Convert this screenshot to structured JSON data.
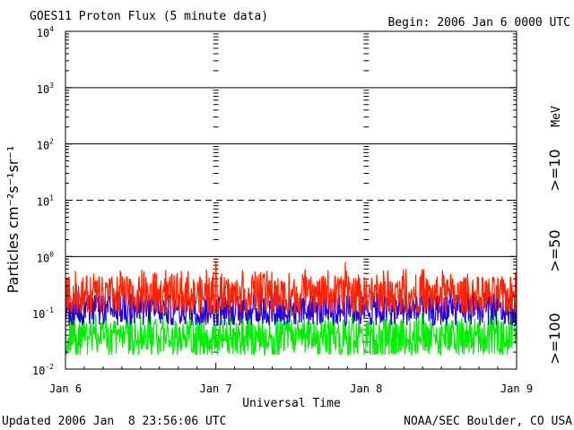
{
  "chart_data": {
    "type": "line",
    "title": "GOES11 Proton Flux (5 minute data)",
    "begin_label": "Begin: 2006 Jan 6 0000 UTC",
    "xlabel": "Universal Time",
    "ylabel": "Particles cm⁻²s⁻¹sr⁻¹",
    "unit_label": "MeV",
    "yscale": "log",
    "ylim": [
      0.01,
      10000
    ],
    "ytick_labels": [
      {
        "base": "10",
        "exp": "-2",
        "value": 0.01
      },
      {
        "base": "10",
        "exp": "-1",
        "value": 0.1
      },
      {
        "base": "10",
        "exp": "0",
        "value": 1
      },
      {
        "base": "10",
        "exp": "1",
        "value": 10
      },
      {
        "base": "10",
        "exp": "2",
        "value": 100
      },
      {
        "base": "10",
        "exp": "3",
        "value": 1000
      },
      {
        "base": "10",
        "exp": "4",
        "value": 10000
      }
    ],
    "xlim": [
      "2006-01-06T00:00",
      "2006-01-09T00:00"
    ],
    "x_ticks": [
      {
        "label": "Jan 6",
        "day": 0
      },
      {
        "label": "Jan 7",
        "day": 1
      },
      {
        "label": "Jan 8",
        "day": 2
      },
      {
        "label": "Jan 9",
        "day": 3
      }
    ],
    "threshold_lines": [
      {
        "value": 1,
        "style": "solid"
      },
      {
        "value": 10,
        "style": "dashed"
      },
      {
        "value": 100,
        "style": "solid"
      },
      {
        "value": 1000,
        "style": "solid"
      }
    ],
    "series": [
      {
        "name": ">=10",
        "color": "#ff2200",
        "typical": 0.2,
        "range": [
          0.1,
          0.6
        ],
        "peaks": [
          {
            "day": 1.0,
            "value": 0.85
          },
          {
            "day": 1.86,
            "value": 0.8
          }
        ]
      },
      {
        "name": ">=50",
        "color": "#2200dd",
        "typical": 0.11,
        "range": [
          0.06,
          0.25
        ]
      },
      {
        "name": ">=100",
        "color": "#00ee00",
        "typical": 0.035,
        "range": [
          0.018,
          0.1
        ]
      }
    ]
  },
  "footer": {
    "updated": "Updated 2006 Jan  8 23:56:06 UTC",
    "source": "NOAA/SEC Boulder, CO USA"
  }
}
